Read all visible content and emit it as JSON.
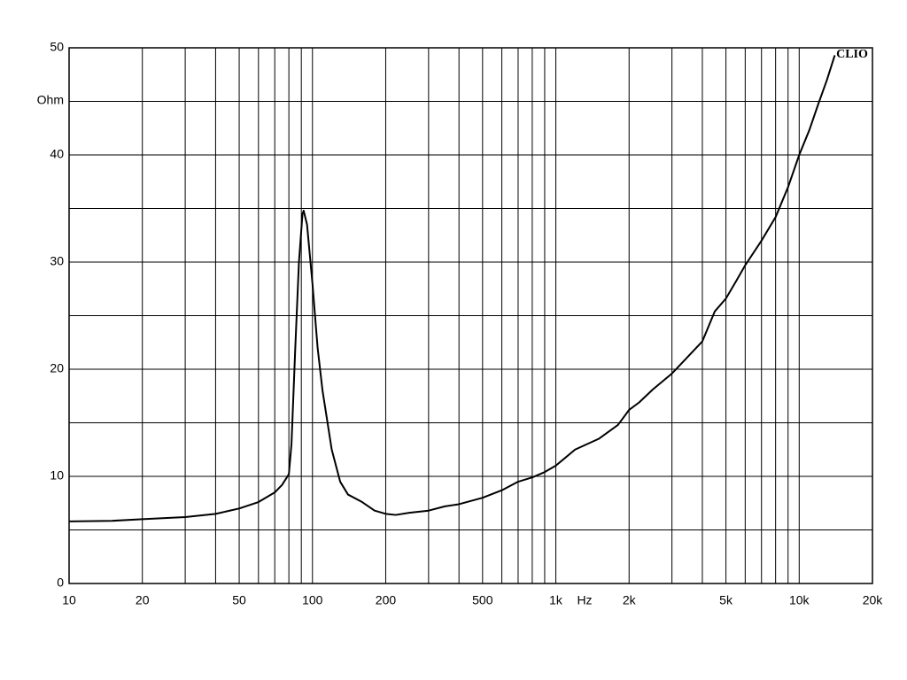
{
  "chart_data": {
    "type": "line",
    "x_log": true,
    "grid": true,
    "x_label": "Hz",
    "y_label": "Ohm",
    "annotation": "CLIO",
    "xlim": [
      10,
      20000
    ],
    "ylim": [
      0,
      50
    ],
    "xticks": [
      10,
      20,
      50,
      100,
      200,
      500,
      {
        "value": 1000,
        "label": "1k"
      },
      {
        "value": 2000,
        "label": "2k"
      },
      {
        "value": 5000,
        "label": "5k"
      },
      {
        "value": 10000,
        "label": "10k"
      },
      {
        "value": 20000,
        "label": "20k"
      }
    ],
    "xgrid_minor": [
      30,
      40,
      60,
      70,
      80,
      90,
      300,
      400,
      600,
      700,
      800,
      900,
      3000,
      4000,
      6000,
      7000,
      8000,
      9000
    ],
    "yticks": [
      0,
      10,
      20,
      30,
      40,
      50
    ],
    "ygrid_minor": [
      5,
      15,
      25,
      35,
      45
    ],
    "x": [
      10,
      15,
      20,
      30,
      40,
      50,
      60,
      70,
      75,
      80,
      82,
      85,
      88,
      91,
      92,
      95,
      100,
      105,
      110,
      120,
      130,
      140,
      160,
      180,
      200,
      220,
      250,
      300,
      350,
      400,
      500,
      600,
      700,
      800,
      900,
      1000,
      1200,
      1500,
      1800,
      2000,
      2200,
      2500,
      3000,
      3500,
      4000,
      4500,
      5000,
      5500,
      6000,
      7000,
      8000,
      9000,
      10000,
      11000,
      12000,
      13000,
      14000
    ],
    "series": [
      {
        "color": "#000000",
        "values": [
          5.8,
          5.85,
          6.0,
          6.2,
          6.5,
          7.0,
          7.6,
          8.5,
          9.2,
          10.2,
          13,
          22,
          30,
          34.5,
          34.8,
          33.5,
          28,
          22,
          18,
          12.5,
          9.5,
          8.3,
          7.6,
          6.8,
          6.5,
          6.4,
          6.6,
          6.8,
          7.2,
          7.4,
          8.0,
          8.7,
          9.5,
          9.9,
          10.4,
          11.0,
          12.5,
          13.5,
          14.8,
          16.2,
          16.9,
          18.1,
          19.6,
          21.2,
          22.6,
          25.4,
          26.6,
          28.2,
          29.7,
          32.0,
          34.2,
          37.0,
          40.0,
          42.3,
          44.8,
          47.0,
          49.3
        ]
      }
    ]
  }
}
